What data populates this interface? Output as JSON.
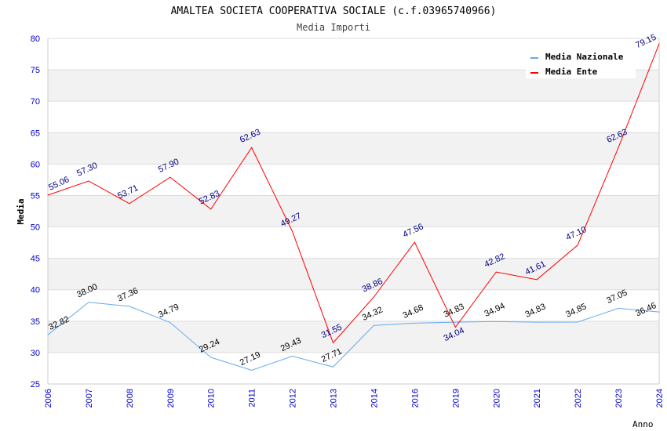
{
  "chart_data": {
    "type": "line",
    "title": "AMALTEA SOCIETA COOPERATIVA SOCIALE (c.f.03965740966)",
    "subtitle": "Media Importi",
    "xlabel": "Anno",
    "ylabel": "Media",
    "ylim": [
      25,
      80
    ],
    "yticks": [
      25,
      30,
      35,
      40,
      45,
      50,
      55,
      60,
      65,
      70,
      75,
      80
    ],
    "categories": [
      "2006",
      "2007",
      "2008",
      "2009",
      "2010",
      "2011",
      "2012",
      "2013",
      "2014",
      "2016",
      "2019",
      "2020",
      "2021",
      "2022",
      "2023",
      "2024"
    ],
    "legend_position": "top-right",
    "series": [
      {
        "name": "Media Nazionale",
        "color": "#66aaee",
        "label_color": "#000000",
        "values": [
          32.82,
          38.0,
          37.36,
          34.79,
          29.24,
          27.19,
          29.43,
          27.71,
          34.32,
          34.68,
          34.83,
          34.94,
          34.83,
          34.85,
          37.05,
          36.46
        ]
      },
      {
        "name": "Media Ente",
        "color": "#ff0000",
        "label_color": "#000080",
        "values": [
          55.06,
          57.3,
          53.71,
          57.9,
          52.83,
          62.63,
          49.27,
          31.55,
          38.86,
          47.56,
          34.04,
          42.82,
          41.61,
          47.1,
          62.63,
          79.15
        ]
      }
    ]
  }
}
